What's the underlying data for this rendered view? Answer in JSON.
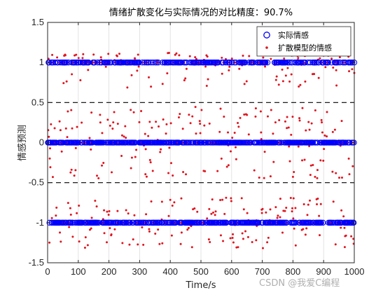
{
  "chart_data": {
    "type": "scatter",
    "title": "情绪扩散变化与实际情况的对比精度：90.7%",
    "xlabel": "Time/s",
    "ylabel": "情感预测",
    "xlim": [
      0,
      1000
    ],
    "ylim": [
      -1.5,
      1.5
    ],
    "xticks": [
      "0",
      "100",
      "200",
      "300",
      "400",
      "500",
      "600",
      "700",
      "800",
      "900",
      "1000"
    ],
    "yticks": [
      "1.5",
      "1",
      "0.5",
      "0",
      "-0.5",
      "-1",
      "-1.5"
    ],
    "grid": "vertical",
    "legend_position": "top-right",
    "reference_lines": [
      0.5,
      -0.5
    ],
    "series": [
      {
        "name": "实际情感",
        "marker": "circle-open",
        "color": "#0000ff",
        "levels": [
          1,
          0,
          -1
        ],
        "n": 1000
      },
      {
        "name": "扩散模型的情感",
        "marker": "dot",
        "color": "#e0141e",
        "n": 1000,
        "accuracy_percent": 90.7
      }
    ]
  },
  "watermark": "CSDN @我爱C编程"
}
